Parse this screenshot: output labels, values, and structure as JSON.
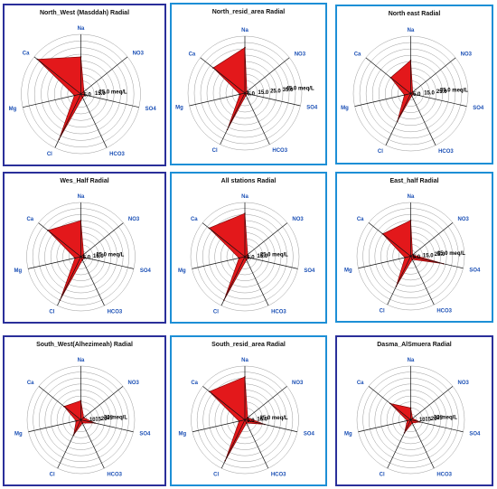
{
  "chart_data": [
    {
      "type": "radar",
      "title": "North_West (Masddah) Radial",
      "axes": [
        "Na",
        "NO3",
        "SO4",
        "HCO3",
        "Cl",
        "Mg",
        "Ca"
      ],
      "tick_labels": [
        "5.0",
        "15.0",
        "25.0 meq/L"
      ],
      "tick_values": [
        5,
        15,
        25
      ],
      "rmax": 45,
      "grid_rings": 9,
      "values": [
        28,
        3,
        3,
        3,
        38,
        5,
        42
      ],
      "fill_color": "#e3181b"
    },
    {
      "type": "radar",
      "title": "North_resid_area Radial",
      "axes": [
        "Na",
        "NO3",
        "SO4",
        "HCO3",
        "Cl",
        "Mg",
        "Ca"
      ],
      "tick_labels": [
        "5.0",
        "15.0",
        "25.0",
        "35.0",
        "45.0 meq/L"
      ],
      "tick_values": [
        5,
        15,
        25,
        35,
        45
      ],
      "rmax": 45,
      "grid_rings": 9,
      "values": [
        36,
        2,
        2,
        2,
        32,
        4,
        32
      ],
      "fill_color": "#e3181b"
    },
    {
      "type": "radar",
      "title": "North east  Radial",
      "axes": [
        "Na",
        "NO3",
        "SO4",
        "HCO3",
        "Cl",
        "Mg",
        "Ca"
      ],
      "tick_labels": [
        "5.0",
        "15.0",
        "25.0",
        "35.0 meq/L"
      ],
      "tick_values": [
        5,
        15,
        25,
        35
      ],
      "rmax": 45,
      "grid_rings": 9,
      "values": [
        26,
        2,
        2,
        2,
        24,
        5,
        20
      ],
      "fill_color": "#e3181b"
    },
    {
      "type": "radar",
      "title": "Wes_Half Radial",
      "axes": [
        "Na",
        "NO3",
        "SO4",
        "HCO3",
        "Cl",
        "Mg",
        "Ca"
      ],
      "tick_labels": [
        "5.0",
        "15.0",
        "25.0 meq/L"
      ],
      "tick_values": [
        5,
        15,
        25
      ],
      "rmax": 45,
      "grid_rings": 9,
      "values": [
        30,
        3,
        3,
        3,
        40,
        5,
        35
      ],
      "fill_color": "#e3181b"
    },
    {
      "type": "radar",
      "title": "All stations Radial",
      "axes": [
        "Na",
        "NO3",
        "SO4",
        "HCO3",
        "Cl",
        "Mg",
        "Ca"
      ],
      "tick_labels": [
        "5.0",
        "15.0",
        "25.0 meq/L"
      ],
      "tick_values": [
        5,
        15,
        25
      ],
      "rmax": 45,
      "grid_rings": 9,
      "values": [
        36,
        3,
        3,
        3,
        40,
        5,
        38
      ],
      "fill_color": "#e3181b"
    },
    {
      "type": "radar",
      "title": "East_half Radial",
      "axes": [
        "Na",
        "NO3",
        "SO4",
        "HCO3",
        "Cl",
        "Mg",
        "Ca"
      ],
      "tick_labels": [
        "5.0",
        "15.0",
        "25.0",
        "35.0 meq/L"
      ],
      "tick_values": [
        5,
        15,
        25,
        35
      ],
      "rmax": 45,
      "grid_rings": 9,
      "values": [
        30,
        2,
        28,
        3,
        28,
        5,
        30
      ],
      "fill_color": "#e3181b"
    },
    {
      "type": "radar",
      "title": "South_West(Alhezimeah) Radial",
      "axes": [
        "Na",
        "NO3",
        "SO4",
        "HCO3",
        "Cl",
        "Mg",
        "Ca"
      ],
      "tick_labels": [
        "10",
        "15",
        "20",
        "25",
        "30 meq/L"
      ],
      "tick_values": [
        10,
        15,
        20,
        25,
        30
      ],
      "rmax": 45,
      "grid_rings": 9,
      "values": [
        16,
        3,
        12,
        3,
        14,
        4,
        18
      ],
      "fill_color": "#e3181b"
    },
    {
      "type": "radar",
      "title": "South_resid_area  Radial",
      "axes": [
        "Na",
        "NO3",
        "SO4",
        "HCO3",
        "Cl",
        "Mg",
        "Ca"
      ],
      "tick_labels": [
        "5.0",
        "15.0",
        "25.0 meq/L"
      ],
      "tick_values": [
        5,
        15,
        25
      ],
      "rmax": 45,
      "grid_rings": 9,
      "values": [
        36,
        3,
        17,
        3,
        38,
        5,
        38
      ],
      "fill_color": "#e3181b"
    },
    {
      "type": "radar",
      "title": "Dasma_AlSmuera Radial",
      "axes": [
        "Na",
        "NO3",
        "SO4",
        "HCO3",
        "Cl",
        "Mg",
        "Ca"
      ],
      "tick_labels": [
        "10",
        "15",
        "20",
        "25",
        "30 meq/L"
      ],
      "tick_values": [
        10,
        15,
        20,
        25,
        30
      ],
      "rmax": 45,
      "grid_rings": 9,
      "values": [
        10,
        2,
        8,
        3,
        12,
        3,
        22
      ],
      "fill_color": "#e3181b"
    }
  ]
}
